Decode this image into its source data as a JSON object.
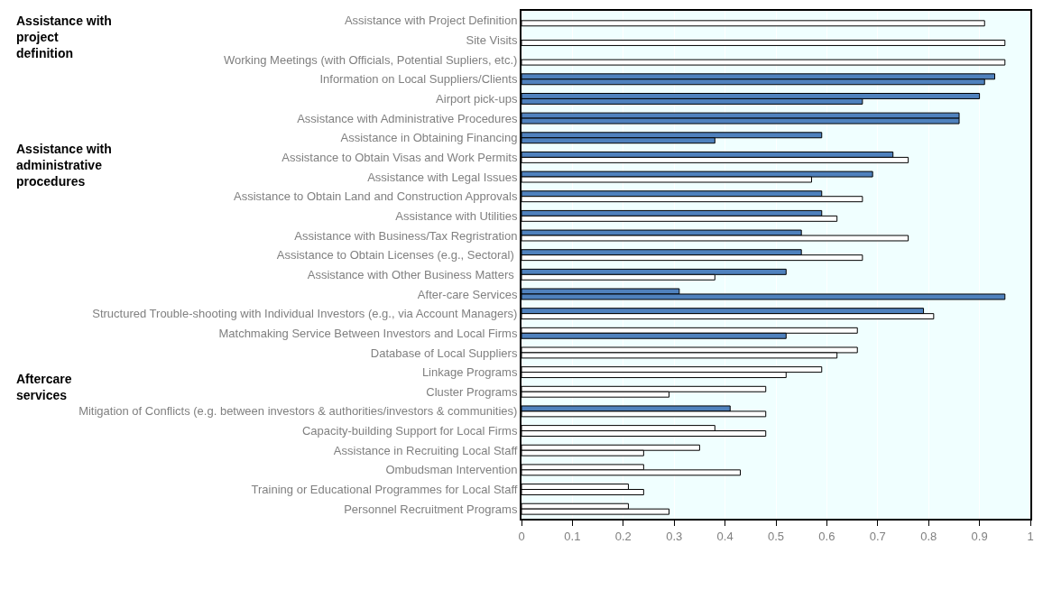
{
  "chart_data": {
    "type": "bar",
    "orientation": "horizontal",
    "categories": [
      "Assistance with Project Definition",
      "Site Visits",
      "Working Meetings (with Officials, Potential Supliers, etc.)",
      "Information on Local Suppliers/Clients",
      "Airport pick-ups",
      "Assistance with Administrative Procedures",
      "Assistance in Obtaining Financing",
      "Assistance to Obtain Visas and Work Permits",
      "Assistance with Legal Issues",
      "Assistance to Obtain Land and Construction Approvals",
      "Assistance with Utilities",
      "Assistance with Business/Tax Regristration",
      "Assistance to Obtain Licenses (e.g., Sectoral) ",
      "Assistance with Other Business Matters ",
      "After-care Services",
      "Structured Trouble-shooting with Individual Investors (e.g., via Account Managers)",
      "Matchmaking Service Between Investors and Local Firms",
      "Database of Local Suppliers",
      "Linkage Programs",
      "Cluster Programs",
      "Mitigation of Conflicts (e.g. between investors & authorities/investors & communities)",
      "Capacity-building Support for Local Firms",
      "Assistance in Recruiting Local Staff",
      "Ombudsman Intervention",
      "Training or Educational Programmes for Local Staff",
      "Personnel Recruitment Programs"
    ],
    "series": [
      {
        "values": [
          null,
          null,
          null,
          0.93,
          0.9,
          0.86,
          0.59,
          0.73,
          0.69,
          0.59,
          0.59,
          0.55,
          0.55,
          0.52,
          0.31,
          0.79,
          0.66,
          0.66,
          0.59,
          0.48,
          0.41,
          0.38,
          0.35,
          0.24,
          0.21,
          0.21
        ],
        "colors": [
          null,
          null,
          null,
          "#4f81bd",
          "#4f81bd",
          "#4f81bd",
          "#4f81bd",
          "#4f81bd",
          "#4f81bd",
          "#4f81bd",
          "#4f81bd",
          "#4f81bd",
          "#4f81bd",
          "#4f81bd",
          "#4f81bd",
          "#4f81bd",
          "#ffffff",
          "#ffffff",
          "#ffffff",
          "#ffffff",
          "#4f81bd",
          "#ffffff",
          "#ffffff",
          "#ffffff",
          "#ffffff",
          "#ffffff"
        ]
      },
      {
        "values": [
          0.91,
          0.95,
          0.95,
          0.91,
          0.67,
          0.86,
          0.38,
          0.76,
          0.57,
          0.67,
          0.62,
          0.76,
          0.67,
          0.38,
          0.95,
          0.81,
          0.52,
          0.62,
          0.52,
          0.29,
          0.48,
          0.48,
          0.24,
          0.43,
          0.24,
          0.29
        ],
        "colors": [
          "#ffffff",
          "#ffffff",
          "#ffffff",
          "#4f81bd",
          "#4f81bd",
          "#4f81bd",
          "#4f81bd",
          "#ffffff",
          "#ffffff",
          "#ffffff",
          "#ffffff",
          "#ffffff",
          "#ffffff",
          "#ffffff",
          "#4f81bd",
          "#ffffff",
          "#4f81bd",
          "#ffffff",
          "#ffffff",
          "#ffffff",
          "#ffffff",
          "#ffffff",
          "#ffffff",
          "#ffffff",
          "#ffffff",
          "#ffffff"
        ]
      }
    ],
    "xlim": [
      0,
      1
    ],
    "xticks": [
      0,
      0.1,
      0.2,
      0.3,
      0.4,
      0.5,
      0.6,
      0.7,
      0.8,
      0.9,
      1
    ],
    "grid": "x",
    "annotations": [
      "Assistance with\nproject\ndefinition",
      "Assistance with\nadministrative\nprocedures",
      "Aftercare\nservices"
    ]
  }
}
